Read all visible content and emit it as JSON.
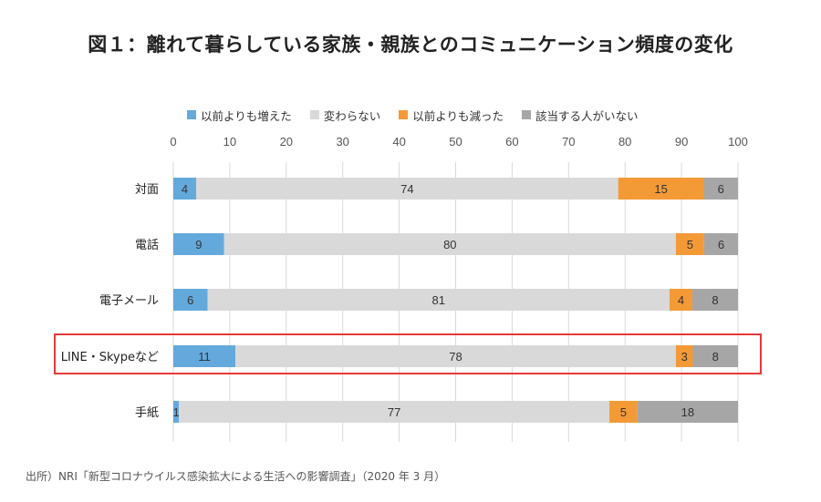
{
  "title": "図１：離れて暮らしている家族・親族とのコミュニケーション頻度の変化",
  "source": "出所）NRI「新型コロナウイルス感染拡大による生活への影響調査」（2020 年 3 月）",
  "chart_data": {
    "type": "bar",
    "orientation": "horizontal",
    "stacked": true,
    "title": "図１：離れて暮らしている家族・親族とのコミュニケーション頻度の変化",
    "xlim": [
      0,
      100
    ],
    "xticks": [
      "0",
      "10",
      "20",
      "30",
      "40",
      "50",
      "60",
      "70",
      "80",
      "90",
      "100"
    ],
    "grid": true,
    "legend_position": "top",
    "categories": [
      "対面",
      "電話",
      "電子メール",
      "LINE・Skypeなど",
      "手紙"
    ],
    "highlighted_category": "LINE・Skypeなど",
    "series": [
      {
        "name": "以前よりも増えた",
        "color": "#64a9dc",
        "values": [
          4,
          9,
          6,
          11,
          1
        ]
      },
      {
        "name": "変わらない",
        "color": "#d9d9d9",
        "values": [
          74,
          80,
          81,
          78,
          77
        ]
      },
      {
        "name": "以前よりも減った",
        "color": "#f39a37",
        "values": [
          15,
          5,
          4,
          3,
          5
        ]
      },
      {
        "name": "該当する人がいない",
        "color": "#a6a6a6",
        "values": [
          6,
          6,
          8,
          8,
          18
        ]
      }
    ]
  }
}
